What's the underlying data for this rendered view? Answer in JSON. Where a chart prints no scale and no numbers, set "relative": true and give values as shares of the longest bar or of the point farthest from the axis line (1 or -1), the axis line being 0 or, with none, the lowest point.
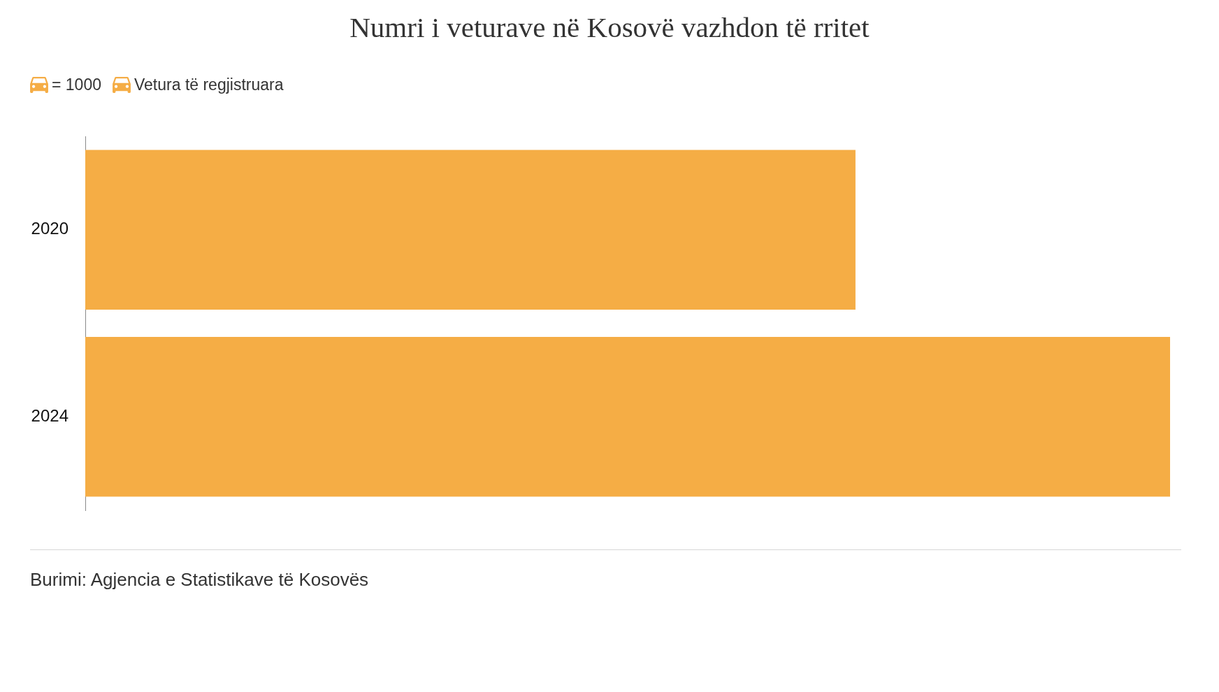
{
  "chart_data": {
    "type": "bar",
    "orientation": "horizontal",
    "relative": true,
    "title": "Numri i veturave në Kosovë vazhdon të rritet",
    "categories": [
      "2020",
      "2024"
    ],
    "series": [
      {
        "name": "Vetura të regjistruara",
        "color": "#f5ad45",
        "values": [
          0.71,
          1
        ]
      }
    ],
    "legend": "top left",
    "legend_title": "= 1000",
    "grid": false,
    "tick_labels": "y",
    "annotations": [
      "Burimi: Agjencia e Statistikave të Kosovës"
    ]
  }
}
